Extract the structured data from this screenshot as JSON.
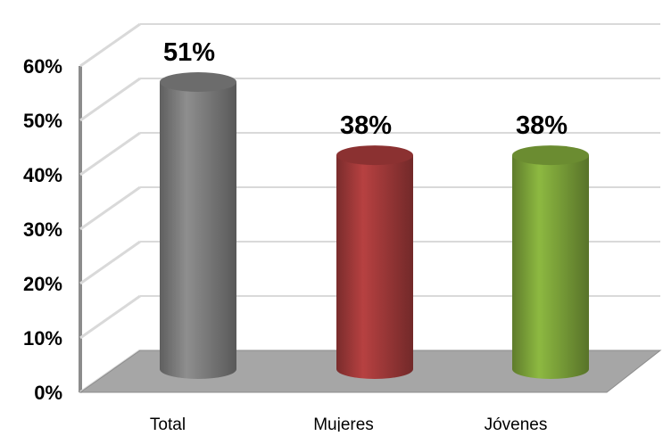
{
  "chart_data": {
    "type": "bar",
    "title": "",
    "xlabel": "",
    "ylabel": "",
    "categories": [
      "Total",
      "Mujeres",
      "Jóvenes"
    ],
    "values": [
      51,
      38,
      38
    ],
    "data_labels": [
      "51%",
      "38%",
      "38%"
    ],
    "ylim": [
      0,
      60
    ],
    "y_ticks": [
      {
        "value": 0,
        "label": "0%"
      },
      {
        "value": 10,
        "label": "10%"
      },
      {
        "value": 20,
        "label": "20%"
      },
      {
        "value": 30,
        "label": "30%"
      },
      {
        "value": 40,
        "label": "40%"
      },
      {
        "value": 50,
        "label": "50%"
      },
      {
        "value": 60,
        "label": "60%"
      }
    ],
    "grid": true,
    "legend": "none",
    "style": "3d-cylinder",
    "colors": {
      "Total": "#7f7f7f",
      "Mujeres": "#a33a3a",
      "Jóvenes": "#7ea53a",
      "floor": "#a6a6a6",
      "gridline": "#d9d9d9"
    }
  }
}
